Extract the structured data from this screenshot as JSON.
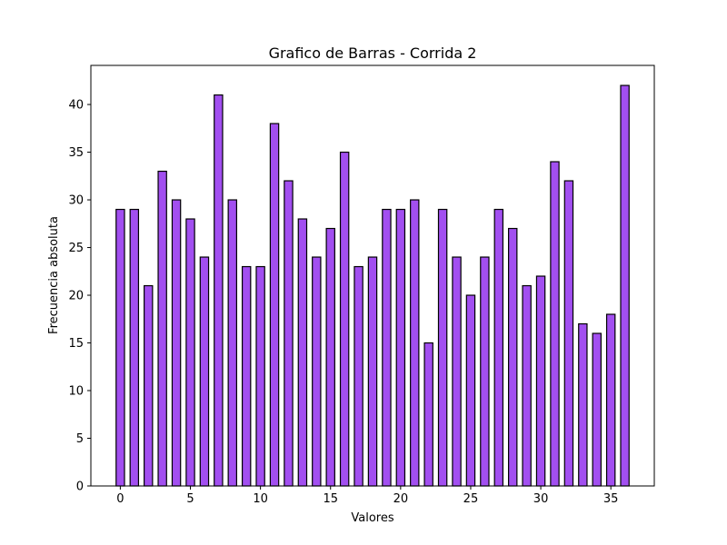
{
  "chart_data": {
    "type": "bar",
    "title": "Grafico de Barras - Corrida 2",
    "xlabel": "Valores",
    "ylabel": "Frecuencia absoluta",
    "x": [
      0,
      1,
      2,
      3,
      4,
      5,
      6,
      7,
      8,
      9,
      10,
      11,
      12,
      13,
      14,
      15,
      16,
      17,
      18,
      19,
      20,
      21,
      22,
      23,
      24,
      25,
      26,
      27,
      28,
      29,
      30,
      31,
      32,
      33,
      34,
      35,
      36
    ],
    "values": [
      29,
      29,
      21,
      33,
      30,
      28,
      24,
      41,
      30,
      23,
      23,
      38,
      32,
      28,
      24,
      27,
      35,
      23,
      24,
      29,
      29,
      30,
      15,
      29,
      24,
      20,
      24,
      29,
      27,
      21,
      22,
      34,
      32,
      17,
      16,
      18,
      42
    ],
    "xlim": [
      -2.1,
      38.1
    ],
    "ylim": [
      0,
      44.1
    ],
    "xticks": [
      0,
      5,
      10,
      15,
      20,
      25,
      30,
      35
    ],
    "yticks": [
      0,
      5,
      10,
      15,
      20,
      25,
      30,
      35,
      40
    ],
    "bar_color": "#a24ff0",
    "bar_edge_color": "#000000",
    "grid": false,
    "legend": false
  }
}
